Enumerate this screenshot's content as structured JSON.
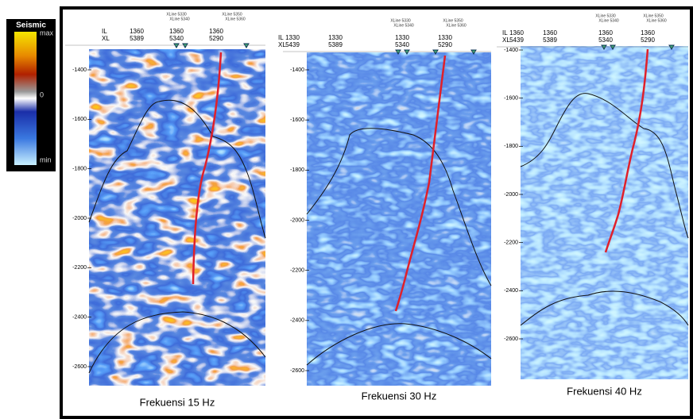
{
  "colorbar": {
    "title": "Seismic",
    "labels": [
      "max",
      "0",
      "min"
    ]
  },
  "panels": [
    {
      "il_label": "IL",
      "xl_label": "XL",
      "columns": [
        {
          "il": "1360",
          "xl": "5389"
        },
        {
          "il": "1360",
          "xl": "5340"
        },
        {
          "il": "1360",
          "xl": "5290"
        }
      ],
      "xlines": [
        "XLine 5330",
        "XLine 5340",
        "XLine 5350",
        "XLine 5360"
      ],
      "depth_ticks": [
        "-1400",
        "-1600",
        "-1800",
        "-2000",
        "-2200",
        "-2400",
        "-2600"
      ],
      "caption": "Frekuensi 15 Hz"
    },
    {
      "il_label": "IL",
      "xl_label": "XL",
      "columns": [
        {
          "il": "1330",
          "xl": "5439"
        },
        {
          "il": "1330",
          "xl": "5389"
        },
        {
          "il": "1330",
          "xl": "5340"
        },
        {
          "il": "1330",
          "xl": "5290"
        }
      ],
      "xlines": [
        "XLine 5330",
        "XLine 5340",
        "XLine 5350",
        "XLine 5360"
      ],
      "depth_ticks": [
        "-1400",
        "-1600",
        "-1800",
        "-2000",
        "-2200",
        "-2400",
        "-2600"
      ],
      "caption": "Frekuensi 30 Hz"
    },
    {
      "il_label": "IL",
      "xl_label": "XL",
      "columns": [
        {
          "il": "1360",
          "xl": "5439"
        },
        {
          "il": "1360",
          "xl": "5389"
        },
        {
          "il": "1360",
          "xl": "5340"
        },
        {
          "il": "1360",
          "xl": "5290"
        }
      ],
      "xlines": [
        "XLine 5330",
        "XLine 5340",
        "XLine 5350",
        "XLine 5360"
      ],
      "depth_ticks": [
        "-1400",
        "-1600",
        "-1800",
        "-2000",
        "-2200",
        "-2400",
        "-2600"
      ],
      "caption": "Frekuensi 40 Hz"
    }
  ]
}
